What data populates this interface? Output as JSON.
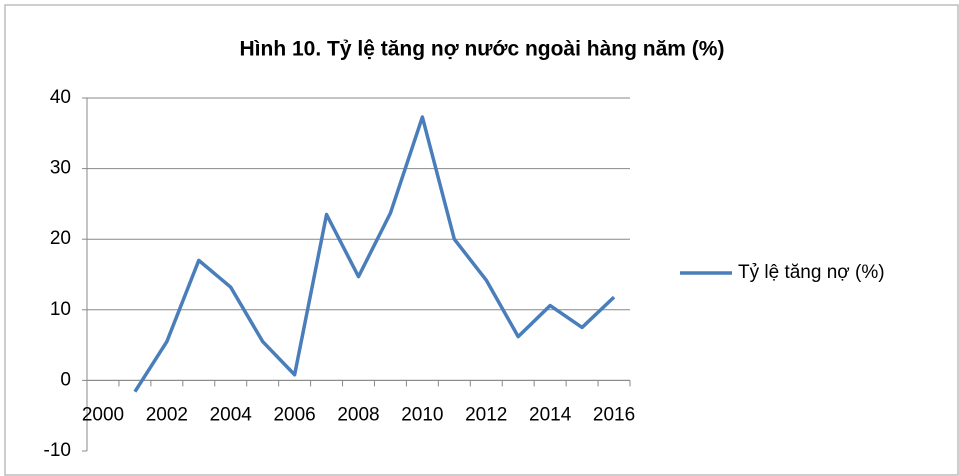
{
  "chart_data": {
    "type": "line",
    "title": "Hình 10. Tỷ lệ tăng nợ nước ngoài hàng năm (%)",
    "categories": [
      "2000",
      null,
      "2002",
      null,
      "2004",
      null,
      "2006",
      null,
      "2008",
      null,
      "2010",
      null,
      "2012",
      null,
      "2014",
      null,
      "2016"
    ],
    "series": [
      {
        "name": "Tỷ lệ tăng nợ (%)",
        "color": "#4a7ebb",
        "values": [
          null,
          -1.6,
          5.5,
          17,
          13.2,
          5.5,
          0.8,
          23.5,
          14.7,
          23.7,
          37.3,
          20,
          14.2,
          6.2,
          10.6,
          7.5,
          11.8
        ]
      }
    ],
    "ylim": [
      -10,
      40
    ],
    "yticks": [
      -10,
      0,
      10,
      20,
      30,
      40
    ],
    "grid": true,
    "legend": "right"
  }
}
